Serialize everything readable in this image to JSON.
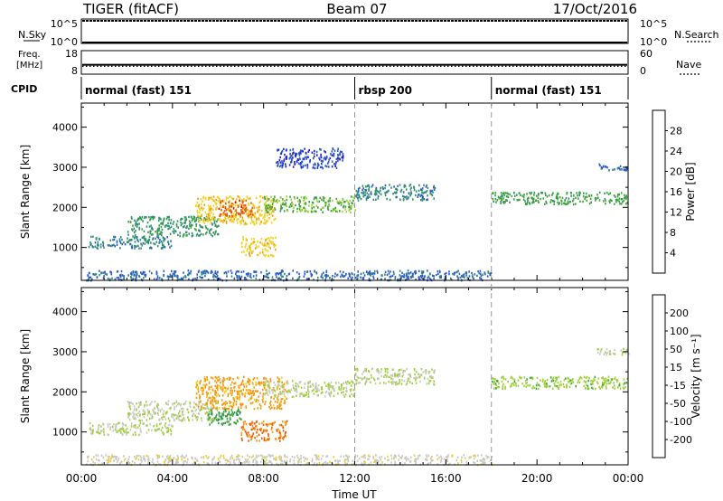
{
  "header": {
    "title_left": "TIGER (fitACF)",
    "title_center": "Beam 07",
    "title_right": "17/Oct/2016"
  },
  "noise_panel": {
    "left_label": "N.Sky",
    "left_ticks": [
      "10^5",
      "10^0"
    ],
    "right_ticks": [
      "10^5",
      "10^0"
    ],
    "right_label": "N.Search"
  },
  "freq_panel": {
    "left_label_line1": "Freq.",
    "left_label_line2": "[MHz]",
    "left_ticks": [
      "18",
      "8"
    ],
    "right_ticks": [
      "60",
      "0"
    ],
    "right_label": "Nave",
    "freq_mhz": 12.0,
    "nave": 20
  },
  "cpid": {
    "label": "CPID",
    "segments": [
      {
        "text": "normal (fast) 151",
        "start_h": 0,
        "end_h": 12
      },
      {
        "text": "rbsp 200",
        "start_h": 12,
        "end_h": 18
      },
      {
        "text": "normal (fast) 151",
        "start_h": 18,
        "end_h": 24
      }
    ]
  },
  "colors": {
    "power": [
      "#1f1fd0",
      "#2a5cc4",
      "#2e8f6e",
      "#3aa03a",
      "#9fcf3c",
      "#f0d020",
      "#f39a10",
      "#e85a10",
      "#d01010"
    ],
    "velocity": [
      "#1f1fd0",
      "#2a5cc4",
      "#2e8f6e",
      "#3aa03a",
      "#9fcf3c",
      "#c8c8c0",
      "#f0d020",
      "#f39a10",
      "#e85a10",
      "#d01010"
    ]
  },
  "chart_data": [
    {
      "type": "heatmap",
      "name": "Power",
      "ylabel": "Slant Range [km]",
      "yticks": [
        "4000",
        "3000",
        "2000",
        "1000"
      ],
      "ylim": [
        180,
        4600
      ],
      "xlim": [
        0,
        24
      ],
      "colorbar_label": "Power [dB]",
      "colorbar_ticks": [
        "28",
        "24",
        "20",
        "16",
        "12",
        "8",
        "4"
      ],
      "colorbar_range": [
        0,
        32
      ],
      "regions": [
        {
          "x0": 0.2,
          "x1": 18,
          "y0": 200,
          "y1": 450,
          "value": 6
        },
        {
          "x0": 0.3,
          "x1": 4.0,
          "y0": 1000,
          "y1": 1300,
          "value": 8
        },
        {
          "x0": 2.0,
          "x1": 6.0,
          "y0": 1300,
          "y1": 1800,
          "value": 10
        },
        {
          "x0": 5.0,
          "x1": 8.5,
          "y0": 1600,
          "y1": 2300,
          "value": 20
        },
        {
          "x0": 6.0,
          "x1": 7.5,
          "y0": 1800,
          "y1": 2200,
          "value": 27
        },
        {
          "x0": 7.0,
          "x1": 8.5,
          "y0": 800,
          "y1": 1300,
          "value": 20
        },
        {
          "x0": 8.0,
          "x1": 12.0,
          "y0": 1900,
          "y1": 2300,
          "value": 14
        },
        {
          "x0": 12.0,
          "x1": 15.5,
          "y0": 2200,
          "y1": 2600,
          "value": 8
        },
        {
          "x0": 18.0,
          "x1": 24.0,
          "y0": 2100,
          "y1": 2400,
          "value": 12
        },
        {
          "x0": 22.5,
          "x1": 24.0,
          "y0": 2950,
          "y1": 3100,
          "value": 6
        },
        {
          "x0": 8.5,
          "x1": 11.5,
          "y0": 3000,
          "y1": 3500,
          "value": 4
        }
      ]
    },
    {
      "type": "heatmap",
      "name": "Velocity",
      "ylabel": "Slant Range [km]",
      "yticks": [
        "4000",
        "3000",
        "2000",
        "1000"
      ],
      "ylim": [
        180,
        4600
      ],
      "xlim": [
        0,
        24
      ],
      "xticks": [
        "00:00",
        "04:00",
        "08:00",
        "12:00",
        "16:00",
        "20:00",
        "00:00"
      ],
      "xlabel": "Time UT",
      "colorbar_label": "Velocity [m s⁻¹]",
      "colorbar_ticks": [
        "200",
        "100",
        "50",
        "15",
        "-15",
        "-50",
        "-100",
        "-200"
      ],
      "colorbar_range": [
        -250,
        250
      ],
      "regions": [
        {
          "x0": 0.2,
          "x1": 18,
          "y0": 200,
          "y1": 450,
          "value": 30
        },
        {
          "x0": 0.3,
          "x1": 4.0,
          "y0": 950,
          "y1": 1250,
          "value": 0
        },
        {
          "x0": 2.0,
          "x1": 6.0,
          "y0": 1300,
          "y1": 1800,
          "value": 0
        },
        {
          "x0": 5.0,
          "x1": 9.0,
          "y0": 1600,
          "y1": 2400,
          "value": 120
        },
        {
          "x0": 7.0,
          "x1": 9.0,
          "y0": 800,
          "y1": 1300,
          "value": 150
        },
        {
          "x0": 5.5,
          "x1": 7.0,
          "y0": 1200,
          "y1": 1600,
          "value": -80
        },
        {
          "x0": 8.0,
          "x1": 12.0,
          "y0": 1900,
          "y1": 2300,
          "value": 0
        },
        {
          "x0": 12.0,
          "x1": 15.5,
          "y0": 2200,
          "y1": 2600,
          "value": 0
        },
        {
          "x0": 18.0,
          "x1": 24.0,
          "y0": 2100,
          "y1": 2400,
          "value": -30
        },
        {
          "x0": 22.5,
          "x1": 24.0,
          "y0": 2950,
          "y1": 3100,
          "value": 0
        }
      ]
    }
  ]
}
